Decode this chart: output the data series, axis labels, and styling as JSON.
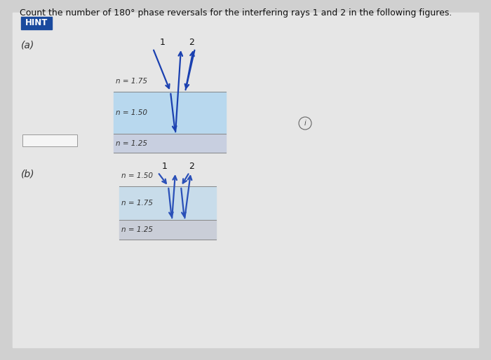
{
  "title": "Count the number of 180° phase reversals for the interfering rays 1 and 2 in the following figures.",
  "hint_text": "HINT",
  "hint_bg": "#1a4a9e",
  "hint_fg": "#ffffff",
  "page_bg": "#d0d0d0",
  "content_bg": "#e6e6e6",
  "fig_a_label": "(a)",
  "fig_b_label": "(b)",
  "fig_a": {
    "n_above": "n = 1.75",
    "n_mid": "n = 1.50",
    "n_bot": "n = 1.25",
    "layer_mid_color": "#b8d8ee",
    "layer_bot_color": "#c8cfe0",
    "ray_color": "#1a40b0"
  },
  "fig_b": {
    "n_above": "n = 1.50",
    "n_mid": "n = 1.75",
    "n_bot": "n = 1.25",
    "layer_mid_color": "#c8dcea",
    "layer_bot_color": "#caced8",
    "ray_color": "#2a50b8"
  }
}
